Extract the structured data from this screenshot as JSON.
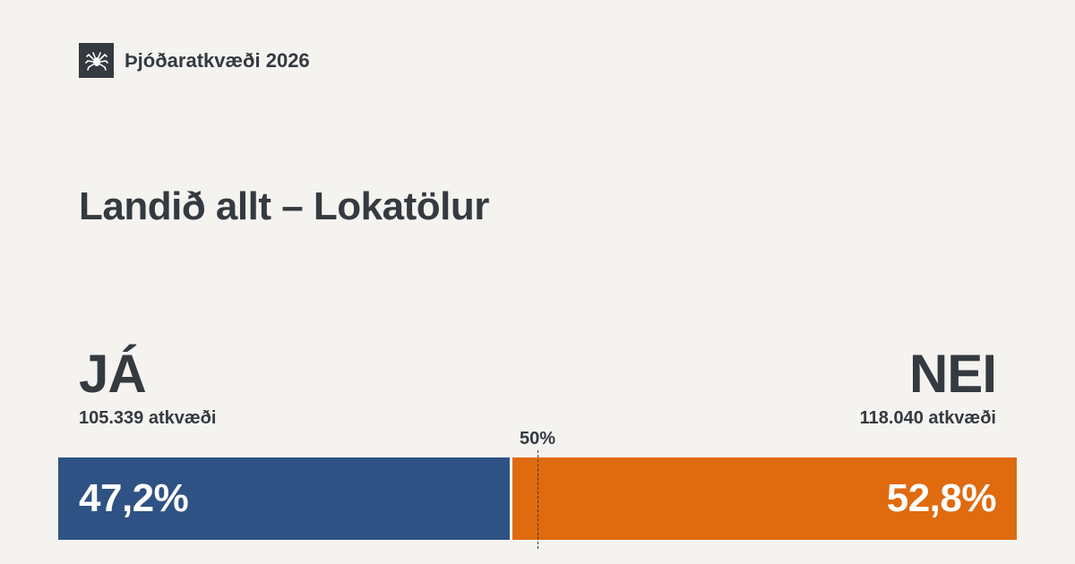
{
  "header": {
    "logo_icon": "spider-emblem-icon",
    "brand_name": "Þjóðaratkvæði 2026"
  },
  "title": "Landið allt – Lokatölur",
  "results": {
    "yes": {
      "label": "JÁ",
      "votes_text": "105.339 atkvæði",
      "percent_text": "47,2%",
      "share": 47.2,
      "color": "#2e5283"
    },
    "no": {
      "label": "NEI",
      "votes_text": "118.040 atkvæði",
      "percent_text": "52,8%",
      "share": 52.8,
      "color": "#e06a0e"
    },
    "midpoint_label": "50%",
    "midpoint_value": 50
  }
}
